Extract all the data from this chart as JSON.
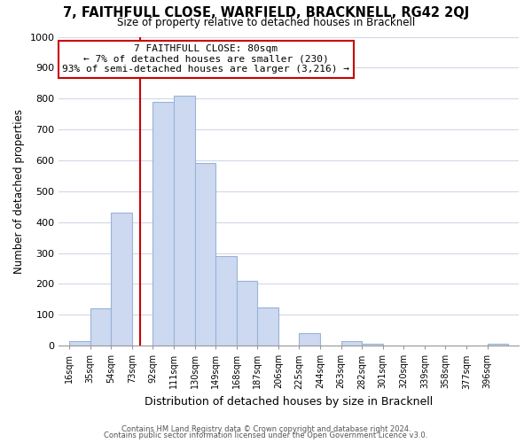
{
  "title": "7, FAITHFULL CLOSE, WARFIELD, BRACKNELL, RG42 2QJ",
  "subtitle": "Size of property relative to detached houses in Bracknell",
  "xlabel": "Distribution of detached houses by size in Bracknell",
  "ylabel": "Number of detached properties",
  "footer_line1": "Contains HM Land Registry data © Crown copyright and database right 2024.",
  "footer_line2": "Contains public sector information licensed under the Open Government Licence v3.0.",
  "bin_labels": [
    "16sqm",
    "35sqm",
    "54sqm",
    "73sqm",
    "92sqm",
    "111sqm",
    "130sqm",
    "149sqm",
    "168sqm",
    "187sqm",
    "206sqm",
    "225sqm",
    "244sqm",
    "263sqm",
    "282sqm",
    "301sqm",
    "320sqm",
    "339sqm",
    "358sqm",
    "377sqm",
    "396sqm"
  ],
  "bar_values": [
    15,
    120,
    430,
    0,
    790,
    810,
    590,
    290,
    210,
    125,
    0,
    40,
    0,
    15,
    5,
    0,
    0,
    0,
    0,
    0,
    5
  ],
  "bin_width": 19,
  "bar_color": "#ccd9f0",
  "bar_edge_color": "#99b3d9",
  "grid_color": "#d0d8e8",
  "vline_x": 80,
  "vline_color": "#cc0000",
  "annotation_text": "7 FAITHFULL CLOSE: 80sqm\n← 7% of detached houses are smaller (230)\n93% of semi-detached houses are larger (3,216) →",
  "annotation_box_color": "white",
  "annotation_box_edge": "#cc0000",
  "ylim": [
    0,
    1000
  ],
  "yticks": [
    0,
    100,
    200,
    300,
    400,
    500,
    600,
    700,
    800,
    900,
    1000
  ],
  "background_color": "white"
}
